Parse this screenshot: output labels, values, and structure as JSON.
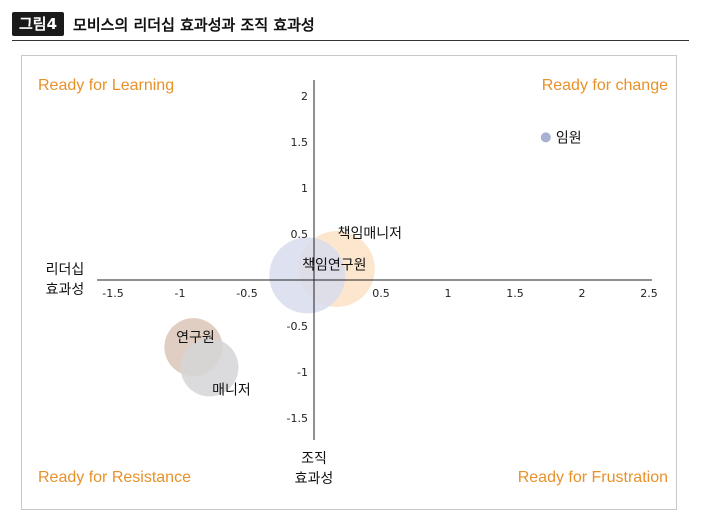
{
  "figure": {
    "badge": "그림4",
    "title": "모비스의 리더십 효과성과 조직 효과성"
  },
  "chart_data": {
    "type": "scatter",
    "x_axis_label_lines": [
      "리더십",
      "효과성"
    ],
    "y_axis_label_lines": [
      "조직",
      "효과성"
    ],
    "xlim": [
      -1.5,
      2.5
    ],
    "ylim": [
      -1.5,
      2
    ],
    "x_ticks": [
      {
        "value": -1.5,
        "label": "-1.5"
      },
      {
        "value": -1,
        "label": "-1"
      },
      {
        "value": -0.5,
        "label": "-0.5"
      },
      {
        "value": 0.5,
        "label": "0.5"
      },
      {
        "value": 1,
        "label": "1"
      },
      {
        "value": 1.5,
        "label": "1.5"
      },
      {
        "value": 2,
        "label": "2"
      },
      {
        "value": 2.5,
        "label": "2.5"
      }
    ],
    "y_ticks": [
      {
        "value": 2,
        "label": "2"
      },
      {
        "value": 1.5,
        "label": "1.5"
      },
      {
        "value": 1,
        "label": "1"
      },
      {
        "value": 0.5,
        "label": "0.5"
      },
      {
        "value": -0.5,
        "label": "-0.5"
      },
      {
        "value": -1,
        "label": "-1"
      },
      {
        "value": -1.5,
        "label": "-1.5"
      }
    ],
    "quadrant_labels": {
      "top_left": "Ready for Learning",
      "top_right": "Ready for change",
      "bottom_left": "Ready for Resistance",
      "bottom_right": "Ready for Frustration"
    },
    "points": [
      {
        "label": "임원",
        "x": 1.73,
        "y": 1.55,
        "color": "#a7b1d3",
        "size": "small"
      },
      {
        "label": "책임매니저",
        "x": 0.17,
        "y": 0.12,
        "color": "#fbe3c5",
        "size": "large"
      },
      {
        "label": "책임연구원",
        "x": -0.05,
        "y": 0.05,
        "color": "#d8dced",
        "size": "large"
      },
      {
        "label": "연구원",
        "x": -0.9,
        "y": -0.73,
        "color": "#dbc5b8",
        "size": "medium"
      },
      {
        "label": "매니저",
        "x": -0.78,
        "y": -0.95,
        "color": "#d5d5d7",
        "size": "medium"
      }
    ],
    "colors": {
      "quadrant_label": "#e8912a",
      "axis": "#222222"
    }
  }
}
